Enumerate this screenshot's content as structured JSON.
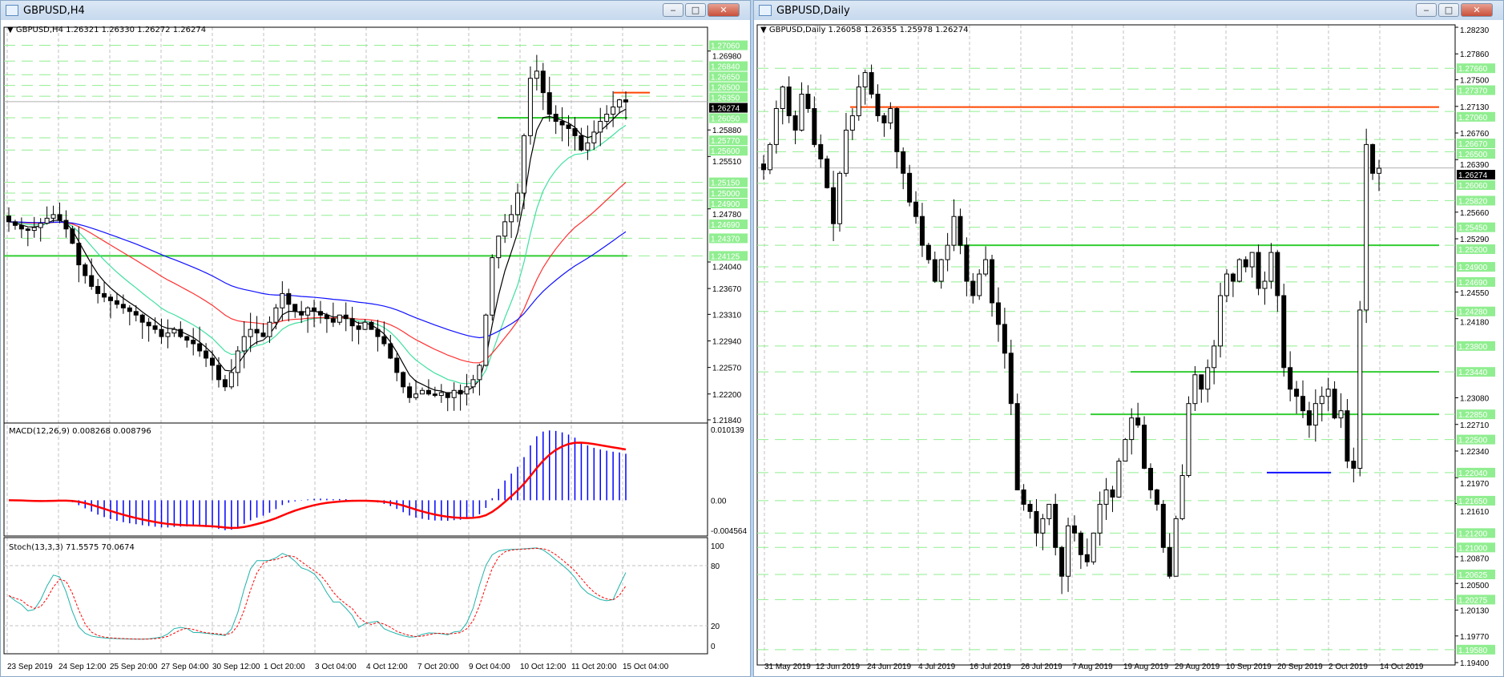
{
  "left": {
    "title": "GBPUSD,H4",
    "header": "GBPUSD,H4  1.26321 1.26330 1.26272 1.26274",
    "macd_label": "MACD(12,26,9) 0.008268 0.008796",
    "stoch_label": "Stoch(13,3,3) 71.5575 70.0674",
    "price_ticks": [
      "1.26980",
      "1.25880",
      "1.25510",
      "1.24780",
      "1.24040",
      "1.23670",
      "1.23310",
      "1.22940",
      "1.22570",
      "1.22200",
      "1.21840"
    ],
    "level_labels": [
      "1.27060",
      "1.26840",
      "1.26650",
      "1.26500",
      "1.26350",
      "1.26050",
      "1.25770",
      "1.25600",
      "1.25150",
      "1.25000",
      "1.24900",
      "1.24690",
      "1.24370",
      "1.24125"
    ],
    "current_price": "1.26274",
    "macd_ticks": [
      "0.010139",
      "0.00",
      "-0.004564"
    ],
    "stoch_ticks": [
      "100",
      "80",
      "20",
      "0"
    ],
    "time_labels": [
      "23 Sep 2019",
      "24 Sep 12:00",
      "25 Sep 20:00",
      "27 Sep 04:00",
      "30 Sep 12:00",
      "1 Oct 20:00",
      "3 Oct 04:00",
      "4 Oct 12:00",
      "7 Oct 20:00",
      "9 Oct 04:00",
      "10 Oct 12:00",
      "11 Oct 20:00",
      "15 Oct 04:00"
    ],
    "closes": [
      1.246,
      1.2455,
      1.245,
      1.2448,
      1.2452,
      1.2458,
      1.2465,
      1.247,
      1.2462,
      1.245,
      1.243,
      1.24,
      1.2385,
      1.237,
      1.236,
      1.2355,
      1.235,
      1.2345,
      1.234,
      1.2335,
      1.233,
      1.232,
      1.2315,
      1.231,
      1.23,
      1.2305,
      1.231,
      1.23,
      1.2295,
      1.229,
      1.228,
      1.227,
      1.226,
      1.224,
      1.223,
      1.225,
      1.228,
      1.23,
      1.231,
      1.2305,
      1.23,
      1.232,
      1.234,
      1.236,
      1.2345,
      1.2335,
      1.233,
      1.234,
      1.2335,
      1.233,
      1.2325,
      1.232,
      1.233,
      1.2325,
      1.2315,
      1.231,
      1.232,
      1.231,
      1.23,
      1.229,
      1.227,
      1.225,
      1.223,
      1.2215,
      1.222,
      1.2225,
      1.222,
      1.2218,
      1.2222,
      1.2215,
      1.2225,
      1.222,
      1.223,
      1.224,
      1.226,
      1.233,
      1.241,
      1.244,
      1.246,
      1.247,
      1.25,
      1.258,
      1.266,
      1.267,
      1.264,
      1.261,
      1.26,
      1.2595,
      1.259,
      1.258,
      1.256,
      1.257,
      1.2585,
      1.26,
      1.261,
      1.262,
      1.263,
      1.2627
    ]
  },
  "right": {
    "title": "GBPUSD,Daily",
    "header": "GBPUSD,Daily  1.26058 1.26355 1.25978 1.26274",
    "price_ticks": [
      "1.28230",
      "1.27860",
      "1.27500",
      "1.27130",
      "1.26760",
      "1.26390",
      "1.25660",
      "1.25290",
      "1.24550",
      "1.24180",
      "1.23080",
      "1.22710",
      "1.22340",
      "1.21970",
      "1.21610",
      "1.20870",
      "1.20500",
      "1.20130",
      "1.19770",
      "1.19400"
    ],
    "level_labels": [
      "1.27660",
      "1.27370",
      "1.27060",
      "1.26670",
      "1.26500",
      "1.26060",
      "1.25820",
      "1.25450",
      "1.25200",
      "1.24900",
      "1.24690",
      "1.24280",
      "1.23800",
      "1.23440",
      "1.22850",
      "1.22500",
      "1.22040",
      "1.21650",
      "1.21200",
      "1.21000",
      "1.20625",
      "1.20275",
      "1.19580"
    ],
    "current_price": "1.26274",
    "time_labels": [
      "31 May 2019",
      "12 Jun 2019",
      "24 Jun 2019",
      "4 Jul 2019",
      "16 Jul 2019",
      "26 Jul 2019",
      "7 Aug 2019",
      "19 Aug 2019",
      "29 Aug 2019",
      "10 Sep 2019",
      "20 Sep 2019",
      "2 Oct 2019",
      "14 Oct 2019"
    ],
    "closes": [
      1.2625,
      1.266,
      1.271,
      1.274,
      1.27,
      1.268,
      1.273,
      1.271,
      1.266,
      1.264,
      1.26,
      1.255,
      1.262,
      1.268,
      1.27,
      1.274,
      1.276,
      1.273,
      1.27,
      1.269,
      1.271,
      1.265,
      1.262,
      1.258,
      1.256,
      1.252,
      1.25,
      1.247,
      1.25,
      1.252,
      1.256,
      1.252,
      1.247,
      1.245,
      1.248,
      1.25,
      1.244,
      1.241,
      1.237,
      1.23,
      1.218,
      1.216,
      1.215,
      1.212,
      1.214,
      1.216,
      1.21,
      1.206,
      1.213,
      1.212,
      1.209,
      1.208,
      1.212,
      1.216,
      1.218,
      1.217,
      1.222,
      1.225,
      1.228,
      1.227,
      1.221,
      1.218,
      1.216,
      1.21,
      1.206,
      1.214,
      1.22,
      1.23,
      1.234,
      1.232,
      1.235,
      1.238,
      1.245,
      1.248,
      1.247,
      1.25,
      1.249,
      1.251,
      1.246,
      1.247,
      1.251,
      1.245,
      1.235,
      1.232,
      1.231,
      1.229,
      1.227,
      1.23,
      1.231,
      1.232,
      1.228,
      1.229,
      1.222,
      1.221,
      1.243,
      1.266,
      1.262,
      1.2627
    ]
  },
  "colors": {
    "level": "#90ee90",
    "support": "#32cd32",
    "resistance": "#ff4500",
    "macd_hist": "#0000ff",
    "signal": "#ff0000",
    "stoch_main": "#20b2aa",
    "ma_fast": "#000000",
    "ma_mid": "#40e0a0",
    "ma_slow": "#ff3030",
    "ma_long": "#1010ff"
  },
  "controls": {
    "minimize": "‒",
    "maximize": "□",
    "close": "✕"
  }
}
